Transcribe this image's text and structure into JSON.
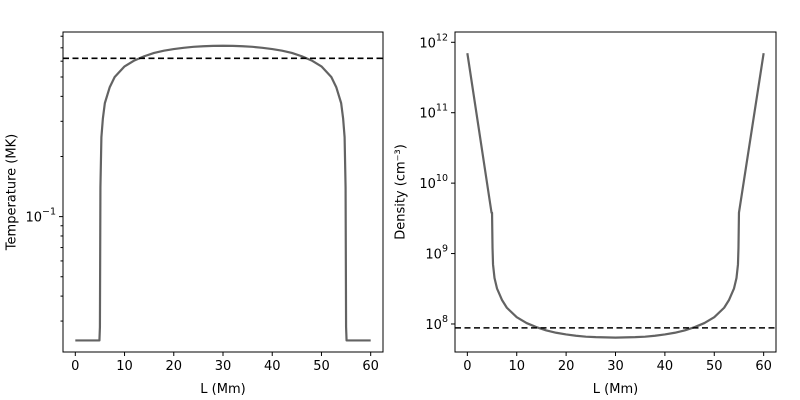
{
  "chart_data": [
    {
      "type": "line",
      "xlabel": "L (Mm)",
      "ylabel": "Temperature (MK)",
      "yscale": "log",
      "xlim": [
        -2.5,
        62.5
      ],
      "ylim": [
        0.021,
        0.84
      ],
      "xticks": [
        0,
        10,
        20,
        30,
        40,
        50,
        60
      ],
      "xtick_labels": [
        "0",
        "10",
        "20",
        "30",
        "40",
        "50",
        "60"
      ],
      "yticks": [
        0.1
      ],
      "ytick_labels": [
        {
          "base": "10",
          "exp": "−1"
        }
      ],
      "minor_yticks": [
        0.03,
        0.04,
        0.05,
        0.06,
        0.07,
        0.08,
        0.09,
        0.2,
        0.3,
        0.4,
        0.5,
        0.6,
        0.7,
        0.8
      ],
      "series": [
        {
          "color": "#636363",
          "x": [
            0,
            4.9,
            5.0,
            5.1,
            5.3,
            5.6,
            6,
            7,
            8,
            10,
            12,
            14,
            16,
            18,
            20,
            22,
            24,
            26,
            28,
            30,
            32,
            34,
            36,
            38,
            40,
            42,
            44,
            46,
            48,
            50,
            52,
            53,
            54,
            54.4,
            54.7,
            54.9,
            55.0,
            55.1,
            60
          ],
          "y": [
            0.024,
            0.024,
            0.028,
            0.14,
            0.25,
            0.31,
            0.37,
            0.445,
            0.5,
            0.565,
            0.605,
            0.635,
            0.66,
            0.677,
            0.69,
            0.7,
            0.708,
            0.713,
            0.716,
            0.717,
            0.716,
            0.713,
            0.708,
            0.7,
            0.69,
            0.677,
            0.66,
            0.635,
            0.605,
            0.565,
            0.5,
            0.445,
            0.37,
            0.31,
            0.25,
            0.14,
            0.028,
            0.024,
            0.024
          ]
        }
      ],
      "hline": {
        "y": 0.62,
        "style": "dashed",
        "color": "#000000"
      }
    },
    {
      "type": "line",
      "xlabel": "L (Mm)",
      "ylabel": "Density (cm⁻³)",
      "yscale": "log",
      "xlim": [
        -2.5,
        62.5
      ],
      "ylim": [
        40000000,
        1400000000000
      ],
      "xticks": [
        0,
        10,
        20,
        30,
        40,
        50,
        60
      ],
      "xtick_labels": [
        "0",
        "10",
        "20",
        "30",
        "40",
        "50",
        "60"
      ],
      "yticks": [
        100000000,
        1000000000,
        10000000000,
        100000000000,
        1000000000000
      ],
      "ytick_labels": [
        {
          "base": "10",
          "exp": "8"
        },
        {
          "base": "10",
          "exp": "9"
        },
        {
          "base": "10",
          "exp": "10"
        },
        {
          "base": "10",
          "exp": "11"
        },
        {
          "base": "10",
          "exp": "12"
        }
      ],
      "series": [
        {
          "color": "#636363",
          "x": [
            0,
            4.9,
            5.0,
            5.1,
            5.2,
            5.5,
            6,
            7,
            8,
            10,
            12,
            14,
            16,
            18,
            20,
            22,
            24,
            26,
            28,
            30,
            32,
            34,
            36,
            38,
            40,
            42,
            44,
            46,
            48,
            50,
            52,
            53,
            54,
            54.5,
            54.8,
            54.9,
            55.0,
            60
          ],
          "y": [
            700000000000,
            3800000000,
            3800000000,
            1200000000,
            700000000,
            450000000,
            320000000,
            220000000,
            170000000,
            125000000,
            103000000,
            90000000,
            81000000,
            75000000,
            71000000,
            68000000,
            66000000,
            65000000,
            64500000,
            64000000,
            64500000,
            65000000,
            66000000,
            68000000,
            71000000,
            75000000,
            81000000,
            90000000,
            103000000,
            125000000,
            170000000,
            220000000,
            320000000,
            450000000,
            700000000,
            1200000000,
            3800000000,
            700000000000
          ]
        }
      ],
      "hline": {
        "y": 88000000,
        "style": "dashed",
        "color": "#000000"
      }
    }
  ]
}
